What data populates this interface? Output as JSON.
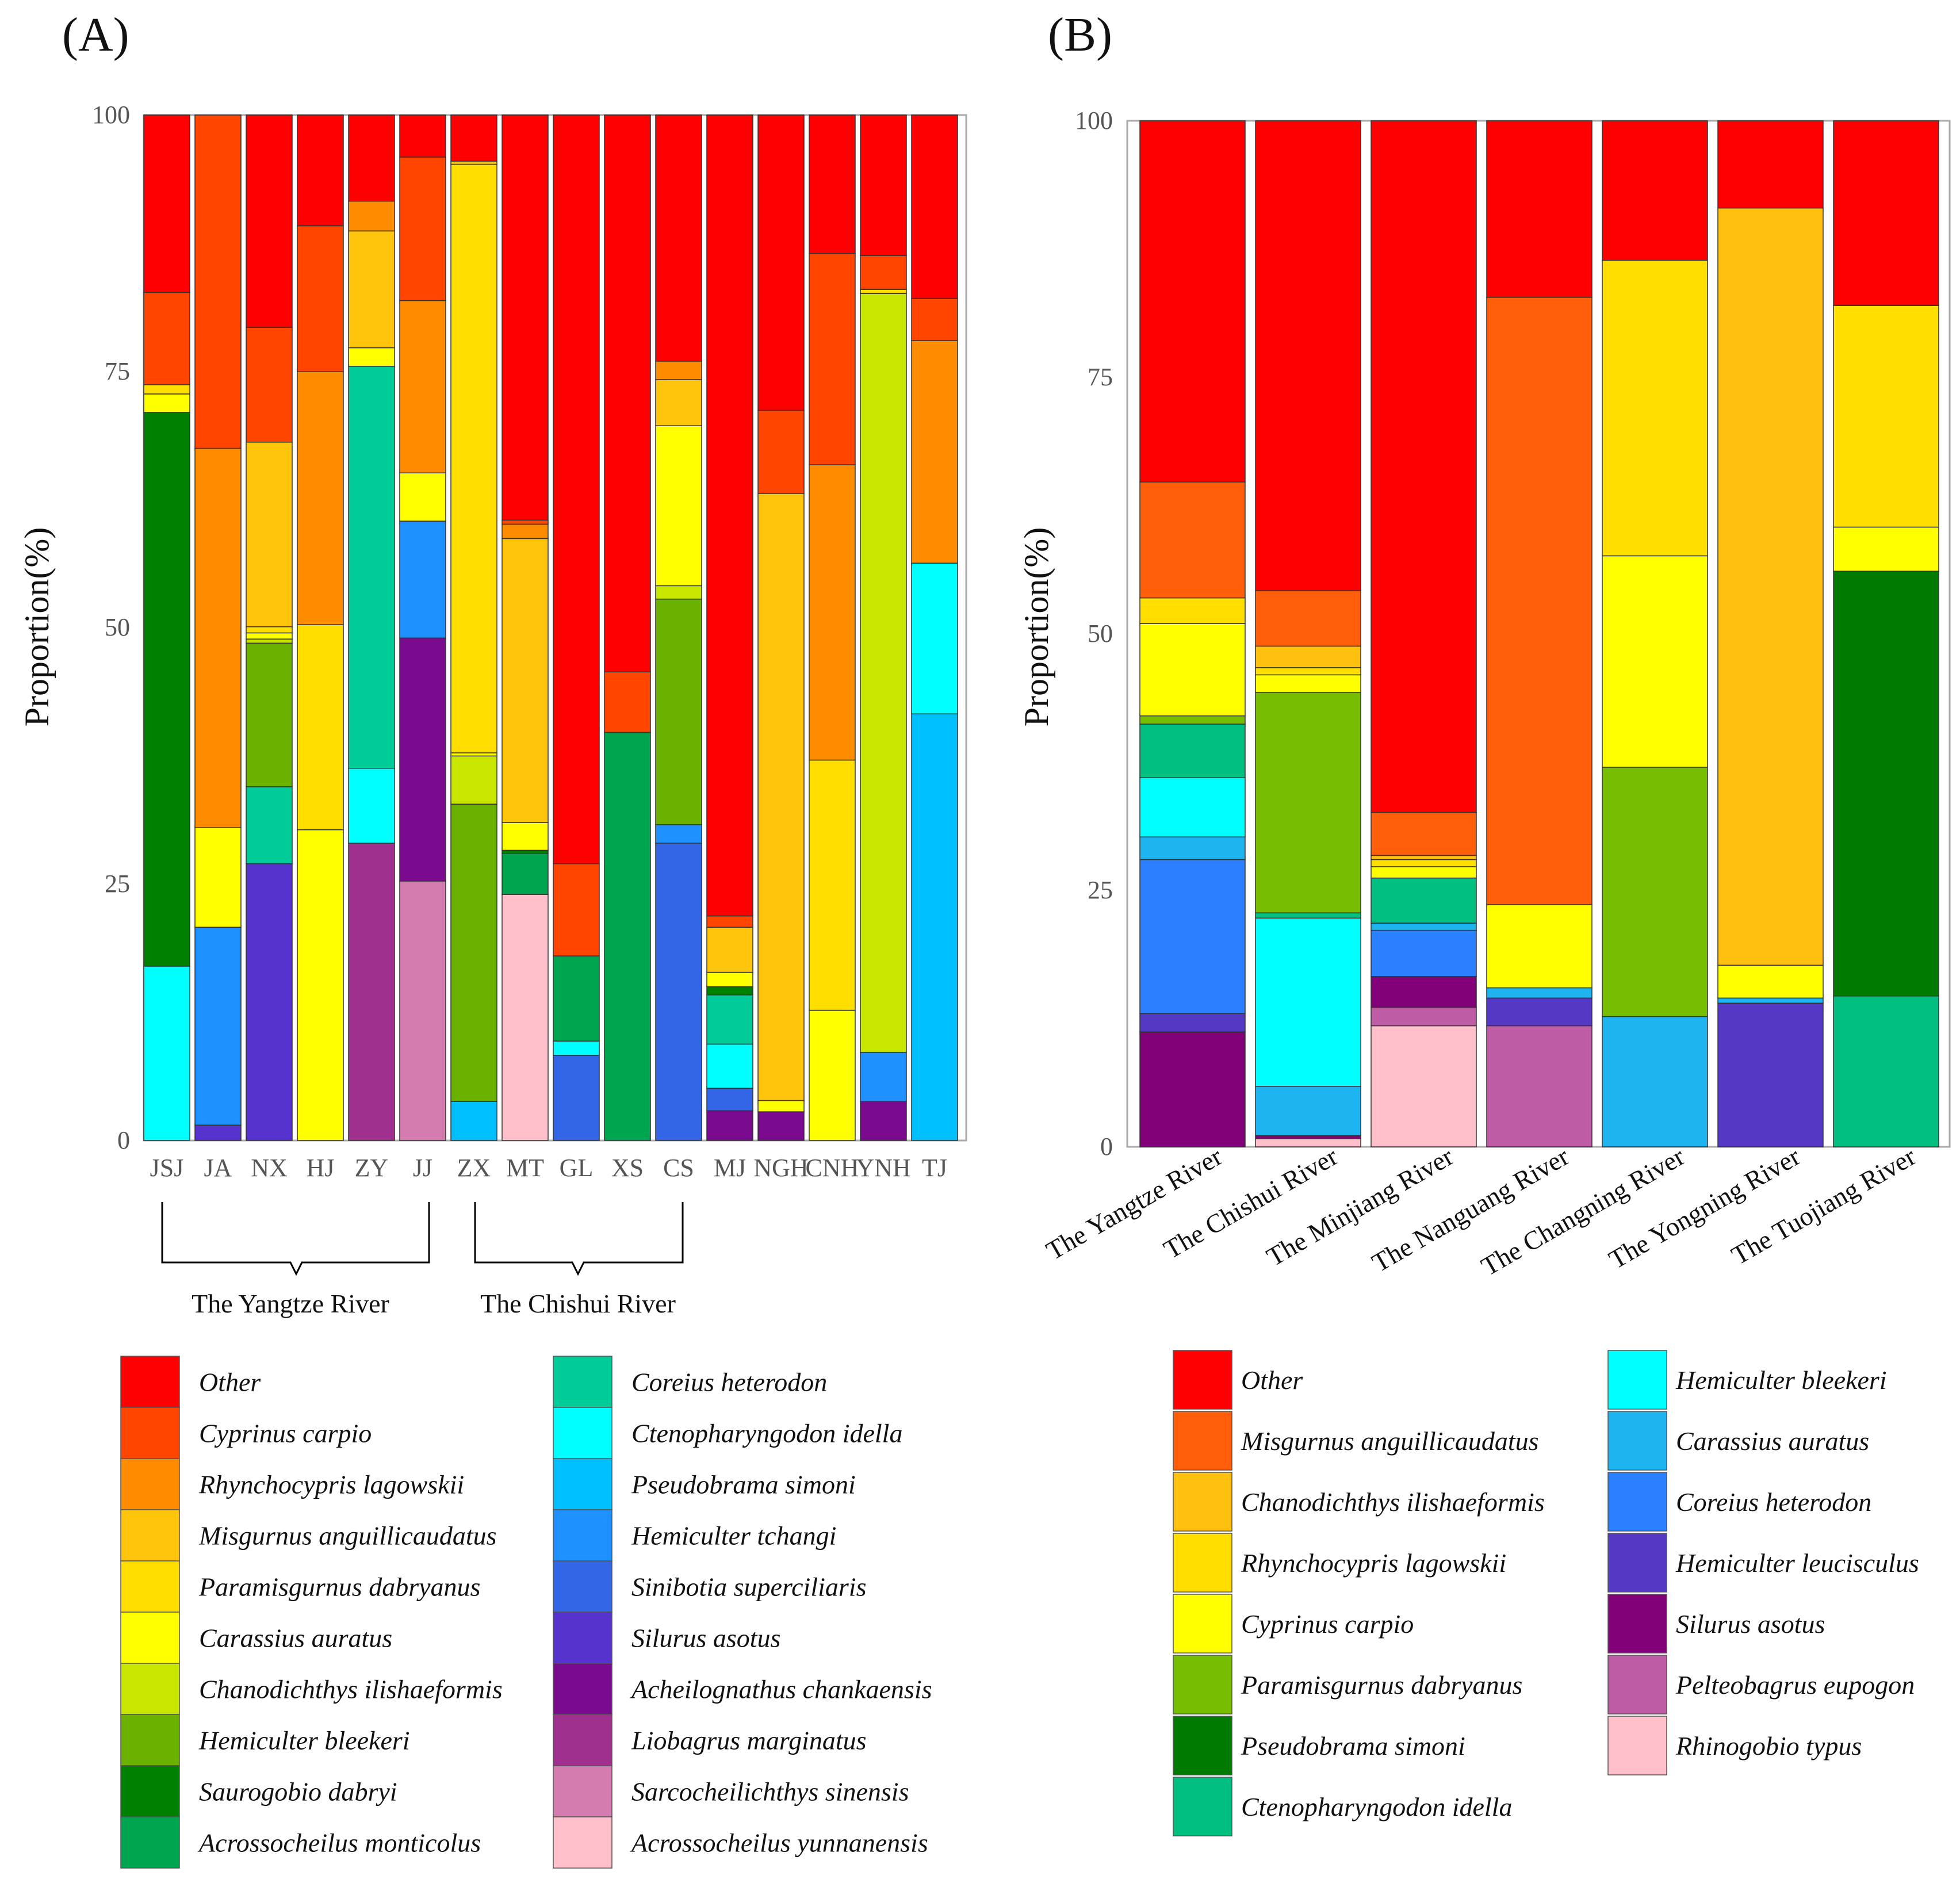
{
  "chart_data": [
    {
      "panel": "(A)",
      "type": "bar",
      "stacked": true,
      "ylabel": "Proportion(%)",
      "ylim": [
        0,
        100
      ],
      "yticks": [
        "0",
        "25",
        "50",
        "75",
        "100"
      ],
      "categories": [
        "JSJ",
        "JA",
        "NX",
        "HJ",
        "ZY",
        "JJ",
        "ZX",
        "MT",
        "GL",
        "XS",
        "CS",
        "MJ",
        "NGH",
        "CNH",
        "YNH",
        "TJ"
      ],
      "groups": [
        {
          "label": "The Yangtze River",
          "from": "JSJ",
          "to": "JJ"
        },
        {
          "label": "The Chishui River",
          "from": "ZX",
          "to": "CS"
        }
      ],
      "legend": [
        {
          "name": "Other",
          "color": "#FF0000"
        },
        {
          "name": "Cyprinus carpio",
          "color": "#FF4500"
        },
        {
          "name": "Rhynchocypris lagowskii",
          "color": "#FF8C00"
        },
        {
          "name": "Misgurnus anguillicaudatus",
          "color": "#FFC40C"
        },
        {
          "name": "Paramisgurnus dabryanus",
          "color": "#FFDE00"
        },
        {
          "name": "Carassius auratus",
          "color": "#FFFF00"
        },
        {
          "name": "Chanodichthys ilishaeformis",
          "color": "#C8E600"
        },
        {
          "name": "Hemiculter bleekeri",
          "color": "#6AB100"
        },
        {
          "name": "Saurogobio dabryi",
          "color": "#008000"
        },
        {
          "name": "Acrossocheilus monticolus",
          "color": "#00A550"
        },
        {
          "name": "Coreius heterodon",
          "color": "#00CC99"
        },
        {
          "name": "Ctenopharyngodon idella",
          "color": "#00FFFF"
        },
        {
          "name": "Pseudobrama simoni",
          "color": "#00BFFF"
        },
        {
          "name": "Hemiculter tchangi",
          "color": "#1E90FF"
        },
        {
          "name": "Sinibotia superciliaris",
          "color": "#3366E6"
        },
        {
          "name": "Silurus asotus",
          "color": "#5533CC"
        },
        {
          "name": "Acheilognathus chankaensis",
          "color": "#7A0A8E"
        },
        {
          "name": "Liobagrus marginatus",
          "color": "#A0308E"
        },
        {
          "name": "Sarcocheilichthys sinensis",
          "color": "#D47BB0"
        },
        {
          "name": "Acrossocheilus yunnanensis",
          "color": "#FFC0CB"
        }
      ],
      "bars": {
        "JSJ": [
          [
            "Ctenopharyngodon idella",
            17
          ],
          [
            "Saurogobio dabryi",
            54
          ],
          [
            "Carassius auratus",
            1.8
          ],
          [
            "Paramisgurnus dabryanus",
            0.9
          ],
          [
            "Cyprinus carpio",
            9
          ],
          [
            "Other",
            17.3
          ]
        ],
        "JA": [
          [
            "Silurus asotus",
            1.5
          ],
          [
            "Hemiculter tchangi",
            19.3
          ],
          [
            "Carassius auratus",
            9.7
          ],
          [
            "Rhynchocypris lagowskii",
            37
          ],
          [
            "Cyprinus carpio",
            32.5
          ]
        ],
        "NX": [
          [
            "Silurus asotus",
            27
          ],
          [
            "Coreius heterodon",
            7.5
          ],
          [
            "Hemiculter bleekeri",
            14
          ],
          [
            "Chanodichthys ilishaeformis",
            0.4
          ],
          [
            "Carassius auratus",
            0.6
          ],
          [
            "Paramisgurnus dabryanus",
            0.6
          ],
          [
            "Misgurnus anguillicaudatus",
            18
          ],
          [
            "Cyprinus carpio",
            11.2
          ],
          [
            "Other",
            20.7
          ]
        ],
        "HJ": [
          [
            "Carassius auratus",
            30.3
          ],
          [
            "Paramisgurnus dabryanus",
            20
          ],
          [
            "Rhynchocypris lagowskii",
            24.7
          ],
          [
            "Cyprinus carpio",
            14.2
          ],
          [
            "Other",
            10.8
          ]
        ],
        "ZY": [
          [
            "Liobagrus marginatus",
            29
          ],
          [
            "Ctenopharyngodon idella",
            7.3
          ],
          [
            "Coreius heterodon",
            39.2
          ],
          [
            "Carassius auratus",
            1.8
          ],
          [
            "Misgurnus anguillicaudatus",
            11.4
          ],
          [
            "Rhynchocypris lagowskii",
            2.9
          ],
          [
            "Other",
            8.4
          ]
        ],
        "JJ": [
          [
            "Sarcocheilichthys sinensis",
            25.3
          ],
          [
            "Acheilognathus chankaensis",
            23.7
          ],
          [
            "Hemiculter tchangi",
            11.4
          ],
          [
            "Carassius auratus",
            4.7
          ],
          [
            "Rhynchocypris lagowskii",
            16.8
          ],
          [
            "Cyprinus carpio",
            14
          ],
          [
            "Other",
            4.1
          ]
        ],
        "ZX": [
          [
            "Pseudobrama simoni",
            3.8
          ],
          [
            "Hemiculter bleekeri",
            29
          ],
          [
            "Chanodichthys ilishaeformis",
            4.7
          ],
          [
            "Carassius auratus",
            0.3
          ],
          [
            "Paramisgurnus dabryanus",
            57.4
          ],
          [
            "Misgurnus anguillicaudatus",
            0.3
          ],
          [
            "Other",
            4.5
          ]
        ],
        "MT": [
          [
            "Acrossocheilus yunnanensis",
            24
          ],
          [
            "Acrossocheilus monticolus",
            4
          ],
          [
            "Saurogobio dabryi",
            0.3
          ],
          [
            "Carassius auratus",
            2.7
          ],
          [
            "Misgurnus anguillicaudatus",
            27.7
          ],
          [
            "Rhynchocypris lagowskii",
            1.4
          ],
          [
            "Cyprinus carpio",
            0.4
          ],
          [
            "Other",
            39.5
          ]
        ],
        "GL": [
          [
            "Sinibotia superciliaris",
            8.3
          ],
          [
            "Ctenopharyngodon idella",
            1.4
          ],
          [
            "Acrossocheilus monticolus",
            8.3
          ],
          [
            "Cyprinus carpio",
            9
          ],
          [
            "Other",
            73
          ]
        ],
        "XS": [
          [
            "Acrossocheilus monticolus",
            39.8
          ],
          [
            "Cyprinus carpio",
            5.9
          ],
          [
            "Other",
            54.3
          ]
        ],
        "CS": [
          [
            "Sinibotia superciliaris",
            29
          ],
          [
            "Hemiculter tchangi",
            1.8
          ],
          [
            "Hemiculter bleekeri",
            22
          ],
          [
            "Chanodichthys ilishaeformis",
            1.3
          ],
          [
            "Carassius auratus",
            15.6
          ],
          [
            "Misgurnus anguillicaudatus",
            4.5
          ],
          [
            "Rhynchocypris lagowskii",
            1.8
          ],
          [
            "Other",
            24
          ]
        ],
        "MJ": [
          [
            "Acheilognathus chankaensis",
            2.9
          ],
          [
            "Sinibotia superciliaris",
            2.2
          ],
          [
            "Ctenopharyngodon idella",
            4.3
          ],
          [
            "Coreius heterodon",
            4.8
          ],
          [
            "Saurogobio dabryi",
            0.8
          ],
          [
            "Carassius auratus",
            1.4
          ],
          [
            "Misgurnus anguillicaudatus",
            4.4
          ],
          [
            "Cyprinus carpio",
            1.1
          ],
          [
            "Other",
            78.1
          ]
        ],
        "NGH": [
          [
            "Acheilognathus chankaensis",
            2.8
          ],
          [
            "Carassius auratus",
            1.1
          ],
          [
            "Misgurnus anguillicaudatus",
            59.2
          ],
          [
            "Cyprinus carpio",
            8.1
          ],
          [
            "Other",
            28.8
          ]
        ],
        "CNH": [
          [
            "Carassius auratus",
            12.7
          ],
          [
            "Paramisgurnus dabryanus",
            24.4
          ],
          [
            "Rhynchocypris lagowskii",
            28.8
          ],
          [
            "Cyprinus carpio",
            20.6
          ],
          [
            "Other",
            13.5
          ]
        ],
        "YNH": [
          [
            "Acheilognathus chankaensis",
            3.8
          ],
          [
            "Hemiculter tchangi",
            4.8
          ],
          [
            "Chanodichthys ilishaeformis",
            74
          ],
          [
            "Paramisgurnus dabryanus",
            0.4
          ],
          [
            "Cyprinus carpio",
            3.3
          ],
          [
            "Other",
            13.7
          ]
        ],
        "TJ": [
          [
            "Pseudobrama simoni",
            41.6
          ],
          [
            "Ctenopharyngodon idella",
            14.7
          ],
          [
            "Rhynchocypris lagowskii",
            21.7
          ],
          [
            "Cyprinus carpio",
            4.1
          ],
          [
            "Other",
            17.9
          ]
        ]
      }
    },
    {
      "panel": "(B)",
      "type": "bar",
      "stacked": true,
      "ylabel": "Proportion(%)",
      "ylim": [
        0,
        100
      ],
      "yticks": [
        "0",
        "25",
        "50",
        "75",
        "100"
      ],
      "categories": [
        "The Yangtze River",
        "The Chishui River",
        "The Minjiang River",
        "The Nanguang River",
        "The Changning River",
        "The Yongning River",
        "The Tuojiang River"
      ],
      "legend": [
        {
          "name": "Other",
          "color": "#FF0000"
        },
        {
          "name": "Misgurnus anguillicaudatus",
          "color": "#FF5F0A"
        },
        {
          "name": "Chanodichthys ilishaeformis",
          "color": "#FFC00F"
        },
        {
          "name": "Rhynchocypris lagowskii",
          "color": "#FFDE00"
        },
        {
          "name": "Cyprinus carpio",
          "color": "#FFFF00"
        },
        {
          "name": "Paramisgurnus dabryanus",
          "color": "#78BE00"
        },
        {
          "name": "Pseudobrama simoni",
          "color": "#007A00"
        },
        {
          "name": "Ctenopharyngodon idella",
          "color": "#00BF80"
        },
        {
          "name": "Hemiculter bleekeri",
          "color": "#00FFFF"
        },
        {
          "name": "Carassius auratus",
          "color": "#1EB4F0"
        },
        {
          "name": "Coreius heterodon",
          "color": "#2A80FF"
        },
        {
          "name": "Hemiculter leucisculus",
          "color": "#5538C4"
        },
        {
          "name": "Silurus asotus",
          "color": "#820078"
        },
        {
          "name": "Pelteobagrus eupogon",
          "color": "#BF5CA6"
        },
        {
          "name": "Rhinogobio typus",
          "color": "#FFC0CB"
        }
      ],
      "bars": {
        "The Yangtze River": [
          [
            "Silurus asotus",
            11.2
          ],
          [
            "Hemiculter leucisculus",
            1.8
          ],
          [
            "Coreius heterodon",
            15
          ],
          [
            "Carassius auratus",
            2.2
          ],
          [
            "Hemiculter bleekeri",
            5.8
          ],
          [
            "Ctenopharyngodon idella",
            5.2
          ],
          [
            "Paramisgurnus dabryanus",
            0.8
          ],
          [
            "Cyprinus carpio",
            9
          ],
          [
            "Rhynchocypris lagowskii",
            2.5
          ],
          [
            "Misgurnus anguillicaudatus",
            11.3
          ],
          [
            "Other",
            35.2
          ]
        ],
        "The Chishui River": [
          [
            "Rhinogobio typus",
            0.8
          ],
          [
            "Silurus asotus",
            0.3
          ],
          [
            "Carassius auratus",
            4.8
          ],
          [
            "Hemiculter bleekeri",
            16.4
          ],
          [
            "Ctenopharyngodon idella",
            0.5
          ],
          [
            "Paramisgurnus dabryanus",
            21.5
          ],
          [
            "Cyprinus carpio",
            1.7
          ],
          [
            "Rhynchocypris lagowskii",
            0.7
          ],
          [
            "Chanodichthys ilishaeformis",
            2.1
          ],
          [
            "Misgurnus anguillicaudatus",
            5.4
          ],
          [
            "Other",
            45.8
          ]
        ],
        "The Minjiang River": [
          [
            "Rhinogobio typus",
            11.8
          ],
          [
            "Pelteobagrus eupogon",
            1.8
          ],
          [
            "Silurus asotus",
            3
          ],
          [
            "Coreius heterodon",
            4.5
          ],
          [
            "Carassius auratus",
            0.7
          ],
          [
            "Ctenopharyngodon idella",
            4.4
          ],
          [
            "Cyprinus carpio",
            1.1
          ],
          [
            "Rhynchocypris lagowskii",
            0.7
          ],
          [
            "Chanodichthys ilishaeformis",
            0.4
          ],
          [
            "Misgurnus anguillicaudatus",
            4.2
          ],
          [
            "Other",
            67.4
          ]
        ],
        "The Nanguang River": [
          [
            "Pelteobagrus eupogon",
            11.8
          ],
          [
            "Hemiculter leucisculus",
            2.7
          ],
          [
            "Carassius auratus",
            1
          ],
          [
            "Cyprinus carpio",
            8.1
          ],
          [
            "Misgurnus anguillicaudatus",
            59.2
          ],
          [
            "Other",
            17.2
          ]
        ],
        "The Changning River": [
          [
            "Carassius auratus",
            12.7
          ],
          [
            "Paramisgurnus dabryanus",
            24.3
          ],
          [
            "Cyprinus carpio",
            20.6
          ],
          [
            "Rhynchocypris lagowskii",
            28.8
          ],
          [
            "Other",
            13.6
          ]
        ],
        "The Yongning River": [
          [
            "Hemiculter leucisculus",
            14
          ],
          [
            "Carassius auratus",
            0.5
          ],
          [
            "Cyprinus carpio",
            3.2
          ],
          [
            "Chanodichthys ilishaeformis",
            73.8
          ],
          [
            "Other",
            8.5
          ]
        ],
        "The Tuojiang River": [
          [
            "Ctenopharyngodon idella",
            14.7
          ],
          [
            "Pseudobrama simoni",
            41.4
          ],
          [
            "Cyprinus carpio",
            4.3
          ],
          [
            "Rhynchocypris lagowskii",
            21.6
          ],
          [
            "Other",
            18
          ]
        ]
      }
    }
  ]
}
